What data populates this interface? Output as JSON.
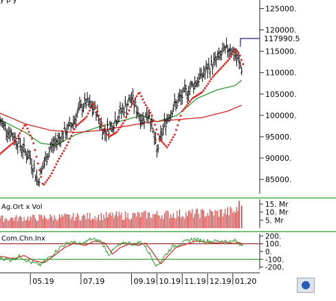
{
  "chart_data": [
    {
      "type": "line",
      "panel": "price",
      "title": "",
      "partial_top_text": "y p   y",
      "y_ticks": [
        {
          "value": 125000,
          "label": "125000."
        },
        {
          "value": 120000,
          "label": "120000."
        },
        {
          "value": 115000,
          "label": "115000."
        },
        {
          "value": 110000,
          "label": "110000."
        },
        {
          "value": 105000,
          "label": "105000."
        },
        {
          "value": 100000,
          "label": "100000."
        },
        {
          "value": 95000,
          "label": "95000."
        },
        {
          "value": 90000,
          "label": "90000."
        },
        {
          "value": 85000,
          "label": "85000."
        }
      ],
      "ylim": [
        81000,
        127000
      ],
      "last_value": 117990.5,
      "last_value_label": "117990.5",
      "last_value_color": "#1a1a8a",
      "x_ticks": [
        "05.19",
        "07.19",
        "09.19",
        "10.19",
        "11.19",
        "12.19",
        "01.20"
      ],
      "x_tick_positions_months": [
        1.2,
        3.2,
        5.2,
        6.2,
        7.2,
        8.2,
        9.2
      ],
      "x_range_months": [
        0,
        10.1
      ],
      "price_anchors": {
        "t": [
          0,
          0.4,
          0.8,
          1.2,
          1.5,
          1.7,
          2.0,
          2.4,
          2.8,
          3.1,
          3.4,
          3.8,
          4.1,
          4.4,
          4.8,
          5.2,
          5.6,
          5.9,
          6.2,
          6.5,
          6.8,
          7.2,
          7.6,
          8.0,
          8.4,
          8.8,
          9.1,
          9.35,
          9.55
        ],
        "v": [
          98500,
          96000,
          93000,
          90000,
          84500,
          88000,
          92500,
          95000,
          97500,
          101000,
          103000,
          101000,
          96000,
          97500,
          101000,
          104000,
          99000,
          100500,
          91500,
          98000,
          101500,
          104500,
          107000,
          109500,
          112000,
          114500,
          116000,
          113500,
          111000
        ]
      },
      "sar_anchors": {
        "t": [
          0,
          0.6,
          1.0,
          1.3,
          1.7,
          2.0,
          2.3,
          2.6,
          3.0,
          3.4,
          3.7,
          4.0,
          4.3,
          4.6,
          4.9,
          5.2,
          5.5,
          5.7,
          6.0,
          6.3,
          6.6,
          6.9,
          7.2,
          7.6,
          8.0,
          8.4,
          8.8,
          9.1,
          9.3,
          9.45,
          9.6
        ],
        "v": [
          91000,
          94000,
          98000,
          94000,
          83500,
          86000,
          89500,
          92500,
          97500,
          99500,
          103000,
          98500,
          95000,
          96000,
          98500,
          102500,
          105500,
          103000,
          100000,
          94500,
          92500,
          95500,
          101000,
          104000,
          105500,
          109000,
          111500,
          113500,
          115500,
          114500,
          112000
        ]
      },
      "series": [
        {
          "name": "",
          "color": "#2b9a2b",
          "t": [
            0,
            1.0,
            1.6,
            2.2,
            3.0,
            4.0,
            5.0,
            5.6,
            6.2,
            7.0,
            7.8,
            8.6,
            9.3,
            9.6
          ],
          "v": [
            99000,
            96000,
            93500,
            93000,
            95500,
            97500,
            99000,
            100000,
            98500,
            100000,
            104000,
            106000,
            107000,
            108500
          ]
        },
        {
          "name": "",
          "color": "#d42020",
          "t": [
            0,
            1.0,
            2.0,
            3.0,
            4.0,
            5.0,
            6.0,
            7.0,
            8.0,
            9.0,
            9.6
          ],
          "v": [
            100500,
            98000,
            96500,
            96000,
            96500,
            97500,
            98500,
            99000,
            99500,
            101000,
            102500
          ]
        }
      ]
    },
    {
      "type": "bar",
      "panel": "volume",
      "title": "Ag.Ort x Vol",
      "y_ticks": [
        {
          "value": 15,
          "label": "15. Mr"
        },
        {
          "value": 10,
          "label": "10. Mr"
        },
        {
          "value": 5,
          "label": "5. Mr"
        }
      ],
      "ylim": [
        0,
        18
      ],
      "unit": "Mr",
      "bar_color": "#e02020",
      "base_level": 7,
      "trend": [
        [
          0,
          6
        ],
        [
          4,
          7.5
        ],
        [
          8.5,
          9.5
        ],
        [
          9.6,
          11
        ]
      ],
      "spikes": [
        {
          "t": 9.45,
          "v": 17
        },
        {
          "t": 9.55,
          "v": 14
        }
      ],
      "baseline_color": "#4aa84a"
    },
    {
      "type": "line",
      "panel": "indicator",
      "title": "Com.Chn.Inx",
      "y_ticks": [
        {
          "value": 200,
          "label": "200."
        },
        {
          "value": 100,
          "label": "100."
        },
        {
          "value": 0,
          "label": "0."
        },
        {
          "value": -100,
          "label": "-100."
        },
        {
          "value": -200,
          "label": "-200."
        }
      ],
      "ylim": [
        -230,
        230
      ],
      "hlines": [
        {
          "value": 100,
          "color": "#8a1a1a"
        },
        {
          "value": -100,
          "color": "#2b9a2b"
        }
      ],
      "cci_anchors": {
        "t": [
          0,
          0.4,
          0.8,
          1.2,
          1.6,
          2.0,
          2.4,
          2.8,
          3.2,
          3.6,
          4.0,
          4.3,
          4.6,
          5.0,
          5.3,
          5.6,
          5.9,
          6.2,
          6.5,
          6.8,
          7.2,
          7.6,
          8.0,
          8.4,
          8.8,
          9.1,
          9.3,
          9.5,
          9.6
        ],
        "v": [
          -80,
          -110,
          -60,
          -140,
          -170,
          -60,
          60,
          130,
          90,
          160,
          130,
          -40,
          60,
          120,
          90,
          130,
          -20,
          -190,
          -60,
          60,
          110,
          160,
          140,
          130,
          140,
          120,
          140,
          90,
          110
        ]
      },
      "smooth_color": "#d42020",
      "cci_color": "#2b9a2b"
    }
  ]
}
